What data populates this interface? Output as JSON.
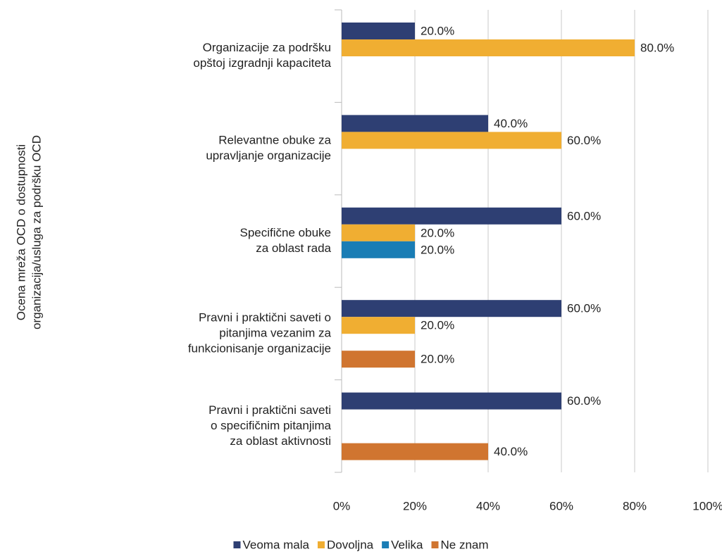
{
  "chart_data": {
    "type": "barh",
    "ylabel": [
      "Ocena mreža OCD o dostupnosti",
      "organizacija/usluga za podršku OCD"
    ],
    "categories": [
      [
        "Organizacije za podršku",
        "opštoj izgradnji kapaciteta"
      ],
      [
        "Relevantne obuke za",
        "upravljanje organizacije"
      ],
      [
        "Specifične obuke",
        "za oblast rada"
      ],
      [
        "Pravni i praktični saveti o",
        "pitanjima vezanim za",
        "funkcionisanje organizacije"
      ],
      [
        "Pravni i praktični saveti",
        "o specifičnim pitanjima",
        "za oblast aktivnosti"
      ]
    ],
    "series": [
      {
        "name": "Veoma mala",
        "color": "#2e3f73",
        "values": [
          20,
          40,
          60,
          60,
          60
        ],
        "value_labels": [
          "20.0%",
          "40.0%",
          "60.0%",
          "60.0%",
          "60.0%"
        ]
      },
      {
        "name": "Dovoljna",
        "color": "#f0ae32",
        "values": [
          80,
          60,
          20,
          20,
          null
        ],
        "value_labels": [
          "80.0%",
          "60.0%",
          "20.0%",
          "20.0%",
          null
        ]
      },
      {
        "name": "Velika",
        "color": "#1a7db5",
        "values": [
          null,
          null,
          20,
          null,
          null
        ],
        "value_labels": [
          null,
          null,
          "20.0%",
          null,
          null
        ]
      },
      {
        "name": "Ne znam",
        "color": "#d07530",
        "values": [
          null,
          null,
          null,
          20,
          40
        ],
        "value_labels": [
          null,
          null,
          null,
          "20.0%",
          "40.0%"
        ]
      }
    ],
    "xlim": [
      0,
      100
    ],
    "xticks": [
      {
        "value": 0,
        "label": "0%"
      },
      {
        "value": 20,
        "label": "20%"
      },
      {
        "value": 40,
        "label": "40%"
      },
      {
        "value": 60,
        "label": "60%"
      },
      {
        "value": 80,
        "label": "80%"
      },
      {
        "value": 100,
        "label": "100%"
      }
    ],
    "grid": true,
    "legend": "bottom"
  }
}
